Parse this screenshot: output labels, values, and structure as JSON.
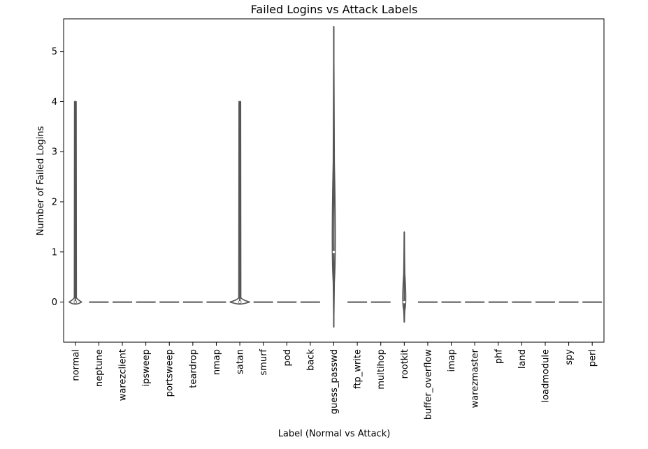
{
  "chart_data": {
    "type": "violin",
    "title": "Failed Logins vs Attack Labels",
    "xlabel": "Label (Normal vs Attack)",
    "ylabel": "Number of Failed Logins",
    "ylim": [
      -0.8,
      5.65
    ],
    "yticks": [
      0,
      1,
      2,
      3,
      4,
      5
    ],
    "grid": false,
    "categories": [
      "normal",
      "neptune",
      "warezclient",
      "ipsweep",
      "portsweep",
      "teardrop",
      "nmap",
      "satan",
      "smurf",
      "pod",
      "back",
      "guess_passwd",
      "ftp_write",
      "multihop",
      "rootkit",
      "buffer_overflow",
      "imap",
      "warezmaster",
      "phf",
      "land",
      "loadmodule",
      "spy",
      "perl"
    ],
    "violins": [
      {
        "label": "normal",
        "min": 0,
        "max": 4,
        "median": 0,
        "shape": "spike"
      },
      {
        "label": "neptune",
        "min": 0,
        "max": 0,
        "median": 0,
        "shape": "flat"
      },
      {
        "label": "warezclient",
        "min": 0,
        "max": 0,
        "median": 0,
        "shape": "flat"
      },
      {
        "label": "ipsweep",
        "min": 0,
        "max": 0,
        "median": 0,
        "shape": "flat"
      },
      {
        "label": "portsweep",
        "min": 0,
        "max": 0,
        "median": 0,
        "shape": "flat"
      },
      {
        "label": "teardrop",
        "min": 0,
        "max": 0,
        "median": 0,
        "shape": "flat"
      },
      {
        "label": "nmap",
        "min": 0,
        "max": 0,
        "median": 0,
        "shape": "flat"
      },
      {
        "label": "satan",
        "min": 0,
        "max": 4,
        "median": 0,
        "shape": "spike"
      },
      {
        "label": "smurf",
        "min": 0,
        "max": 0,
        "median": 0,
        "shape": "flat"
      },
      {
        "label": "pod",
        "min": 0,
        "max": 0,
        "median": 0,
        "shape": "flat"
      },
      {
        "label": "back",
        "min": 0,
        "max": 0,
        "median": 0,
        "shape": "flat"
      },
      {
        "label": "guess_passwd",
        "min": -0.5,
        "max": 5.5,
        "median": 1,
        "shape": "diamond"
      },
      {
        "label": "ftp_write",
        "min": 0,
        "max": 0,
        "median": 0,
        "shape": "flat"
      },
      {
        "label": "multihop",
        "min": 0,
        "max": 0,
        "median": 0,
        "shape": "flat"
      },
      {
        "label": "rootkit",
        "min": -0.4,
        "max": 1.4,
        "median": 0,
        "shape": "diamond"
      },
      {
        "label": "buffer_overflow",
        "min": 0,
        "max": 0,
        "median": 0,
        "shape": "flat"
      },
      {
        "label": "imap",
        "min": 0,
        "max": 0,
        "median": 0,
        "shape": "flat"
      },
      {
        "label": "warezmaster",
        "min": 0,
        "max": 0,
        "median": 0,
        "shape": "flat"
      },
      {
        "label": "phf",
        "min": 0,
        "max": 0,
        "median": 0,
        "shape": "flat"
      },
      {
        "label": "land",
        "min": 0,
        "max": 0,
        "median": 0,
        "shape": "flat"
      },
      {
        "label": "loadmodule",
        "min": 0,
        "max": 0,
        "median": 0,
        "shape": "flat"
      },
      {
        "label": "spy",
        "min": 0,
        "max": 0,
        "median": 0,
        "shape": "flat"
      },
      {
        "label": "perl",
        "min": 0,
        "max": 0,
        "median": 0,
        "shape": "flat"
      }
    ],
    "colors": {
      "stroke": "#555555",
      "fill": "#ffffff",
      "axis": "#000000",
      "text": "#000000"
    }
  }
}
